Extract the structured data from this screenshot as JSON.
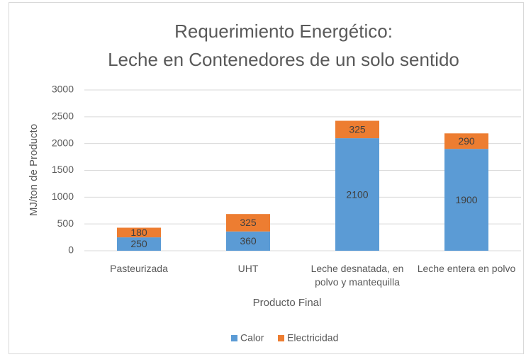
{
  "chart_data": {
    "type": "stacked_bar",
    "title": [
      "Requerimiento Energético:",
      "Leche en Contenedores de un solo sentido"
    ],
    "x_label": "Producto Final",
    "y_label": "MJ/ton de Producto",
    "categories": [
      "Pasteurizada",
      "UHT",
      "Leche desnatada, en polvo y mantequilla",
      "Leche entera en polvo"
    ],
    "series": [
      {
        "name": "Calor",
        "color": "#5b9bd5",
        "values": [
          250,
          360,
          2100,
          1900
        ]
      },
      {
        "name": "Electricidad",
        "color": "#ed7d31",
        "values": [
          180,
          325,
          325,
          290
        ]
      }
    ],
    "ylim": [
      0,
      3000
    ],
    "yticks": [
      0,
      500,
      1000,
      1500,
      2000,
      2500,
      3000
    ],
    "grid": true,
    "legend": "bottom"
  }
}
